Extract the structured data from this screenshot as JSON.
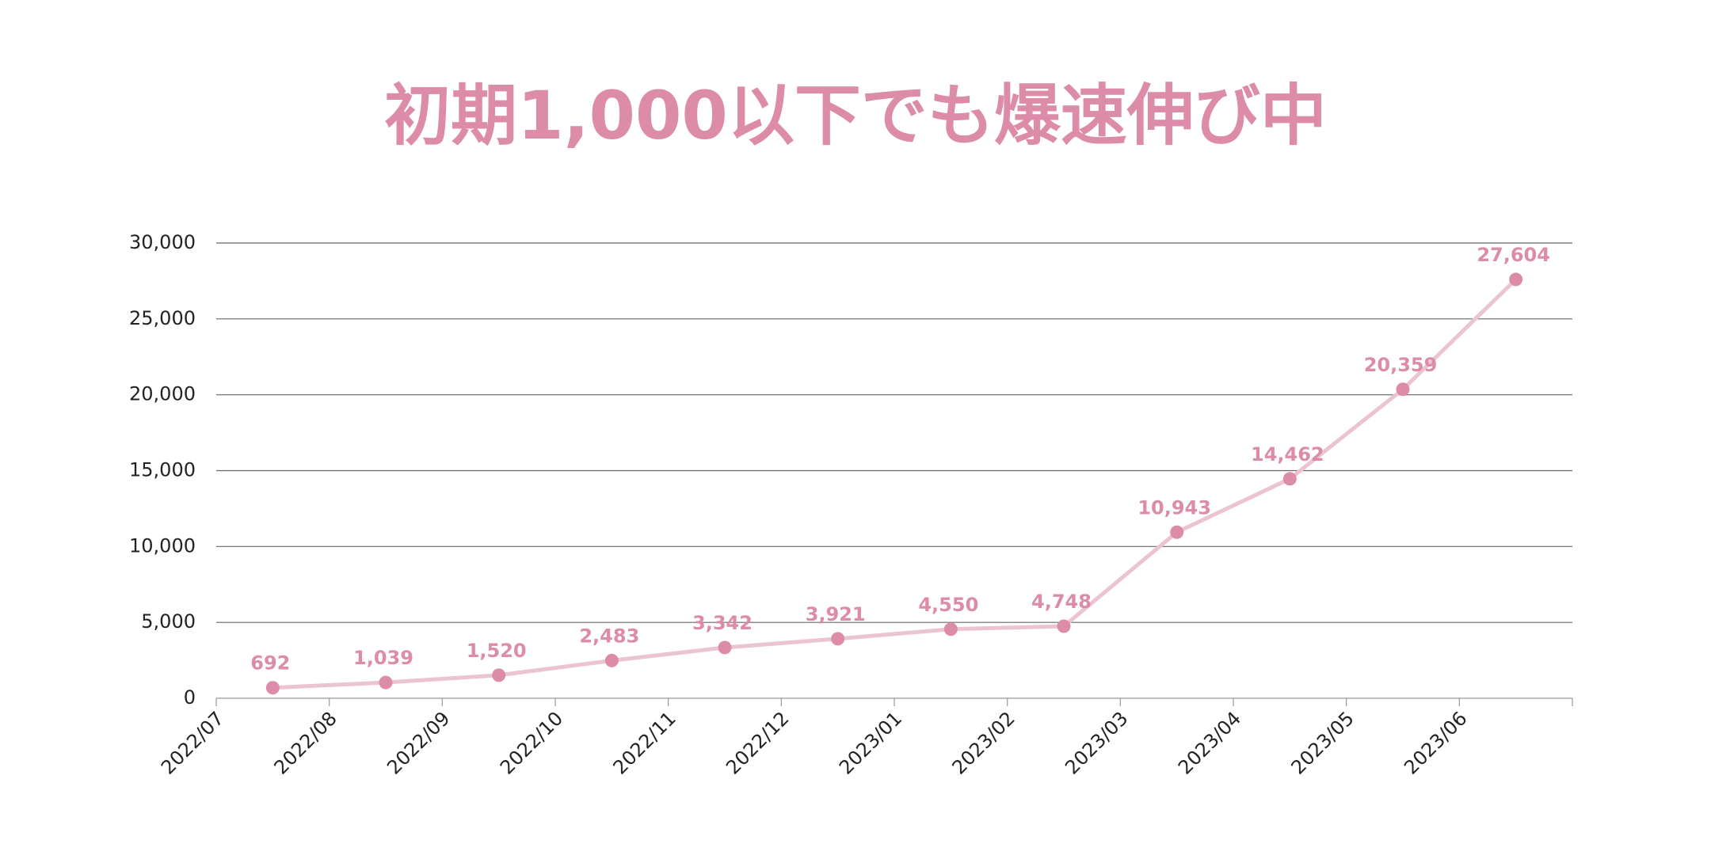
{
  "chart_data": {
    "type": "line",
    "title": "初期1,000以下でも爆速伸び中",
    "categories": [
      "2022/07",
      "2022/08",
      "2022/09",
      "2022/10",
      "2022/11",
      "2022/12",
      "2023/01",
      "2023/02",
      "2023/03",
      "2023/04",
      "2023/05",
      "2023/06"
    ],
    "series": [
      {
        "name": null,
        "color": "#dc8ca8",
        "line_color": "#ecc3d1",
        "values": [
          692,
          1039,
          1520,
          2483,
          3342,
          3921,
          4550,
          4748,
          10943,
          14462,
          20359,
          27604
        ],
        "value_labels": [
          "692",
          "1,039",
          "1,520",
          "2,483",
          "3,342",
          "3,921",
          "4,550",
          "4,748",
          "10,943",
          "14,462",
          "20,359",
          "27,604"
        ]
      }
    ],
    "ylim": [
      0,
      30000
    ],
    "yticks": [
      0,
      {
        "value": 5000,
        "label": "5,000"
      },
      {
        "value": 10000,
        "label": "10,000"
      },
      {
        "value": 15000,
        "label": "15,000"
      },
      {
        "value": 20000,
        "label": "20,000"
      },
      {
        "value": 25000,
        "label": "25,000"
      },
      {
        "value": 30000,
        "label": "30,000"
      }
    ],
    "grid": true
  }
}
